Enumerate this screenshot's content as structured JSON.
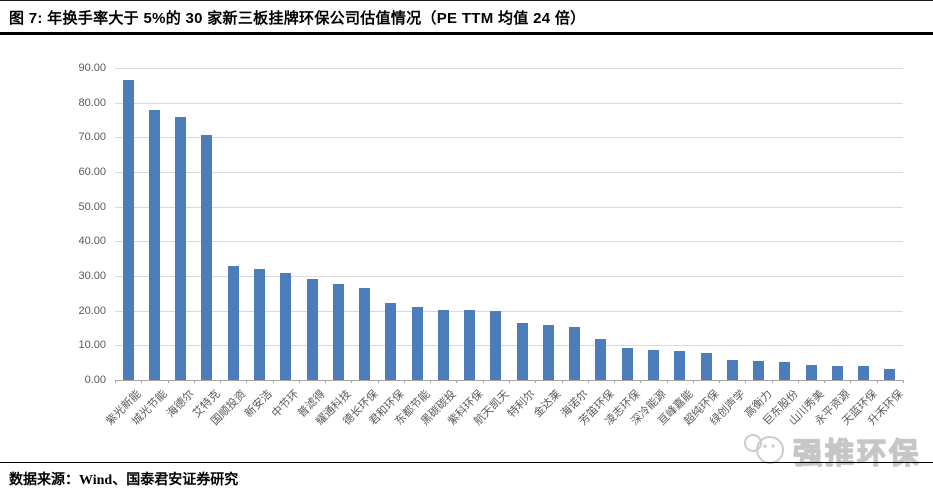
{
  "figure": {
    "title": "图 7:  年换手率大于 5%的 30 家新三板挂牌环保公司估值情况（PE TTM 均值 24 倍）",
    "source": "数据来源：Wind、国泰君安证券研究",
    "watermark": "强推环保"
  },
  "chart_data": {
    "type": "bar",
    "title": "年换手率大于 5%的 30 家新三板挂牌环保公司 PE TTM（均值 24 倍）",
    "categories": [
      "紫光新能",
      "城光节能",
      "海德尔",
      "艾特克",
      "国顺投资",
      "新安洁",
      "中节环",
      "普滤得",
      "耀通科技",
      "德长环保",
      "君和环保",
      "东都节能",
      "黑碳碳投",
      "紫科环保",
      "航天凯天",
      "特利尔",
      "金达莱",
      "海诺尔",
      "芳笛环保",
      "凌志环保",
      "深冷能源",
      "亘峰嘉能",
      "超纯环保",
      "绿创声学",
      "高衡力",
      "巨东股份",
      "山川秀美",
      "永平资源",
      "天蓝环保",
      "升禾环保"
    ],
    "values": [
      86.5,
      78.0,
      76.0,
      70.7,
      32.8,
      32.1,
      30.9,
      29.2,
      27.7,
      26.5,
      22.3,
      21.1,
      20.3,
      20.1,
      19.9,
      16.4,
      16.0,
      15.2,
      11.9,
      9.1,
      8.7,
      8.4,
      7.9,
      5.7,
      5.4,
      5.1,
      4.3,
      4.0,
      3.9,
      3.2
    ],
    "xlabel": "",
    "ylabel": "",
    "ylim": [
      0,
      90
    ],
    "yticks": [
      "0.00",
      "10.00",
      "20.00",
      "30.00",
      "40.00",
      "50.00",
      "60.00",
      "70.00",
      "80.00",
      "90.00"
    ],
    "grid": true,
    "legend": null,
    "bar_color": "#4d7cbc",
    "gridline_color": "#d9d9d9",
    "axis_color": "#a6a6a6",
    "tick_label_color": "#595959"
  }
}
